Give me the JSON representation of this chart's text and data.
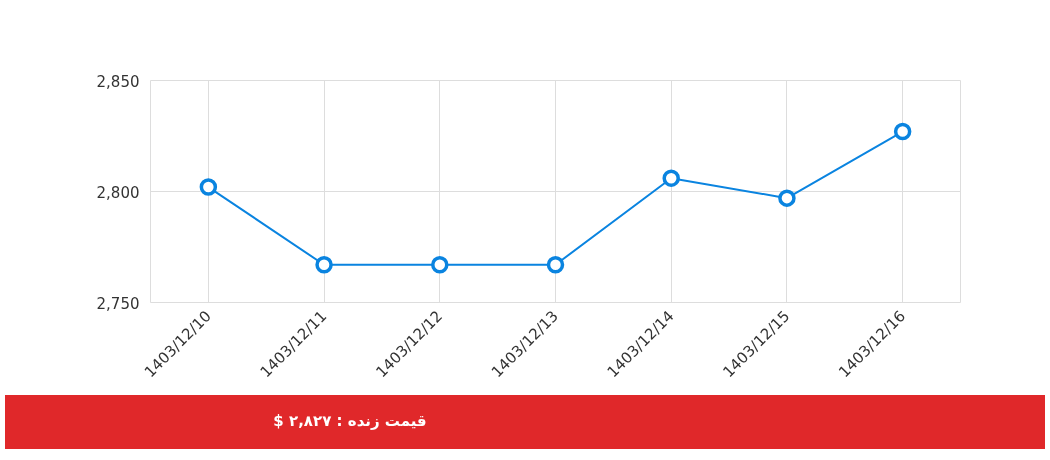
{
  "chart_data": {
    "type": "line",
    "categories": [
      "1403/12/10",
      "1403/12/11",
      "1403/12/12",
      "1403/12/13",
      "1403/12/14",
      "1403/12/15",
      "1403/12/16"
    ],
    "series": [
      {
        "color": "#0a84e0",
        "values": [
          2802,
          2767,
          2767,
          2767,
          2806,
          2797,
          2827
        ]
      }
    ],
    "ylim": [
      2750,
      2850
    ],
    "yticks": [
      {
        "value": 2750,
        "label": "2,750"
      },
      {
        "value": 2800,
        "label": "2,800"
      },
      {
        "value": 2850,
        "label": "2,850"
      }
    ],
    "grid": true,
    "marker": "circle",
    "annotations": [
      "قیمت زنده : ۲,۸۲۷ $"
    ]
  }
}
